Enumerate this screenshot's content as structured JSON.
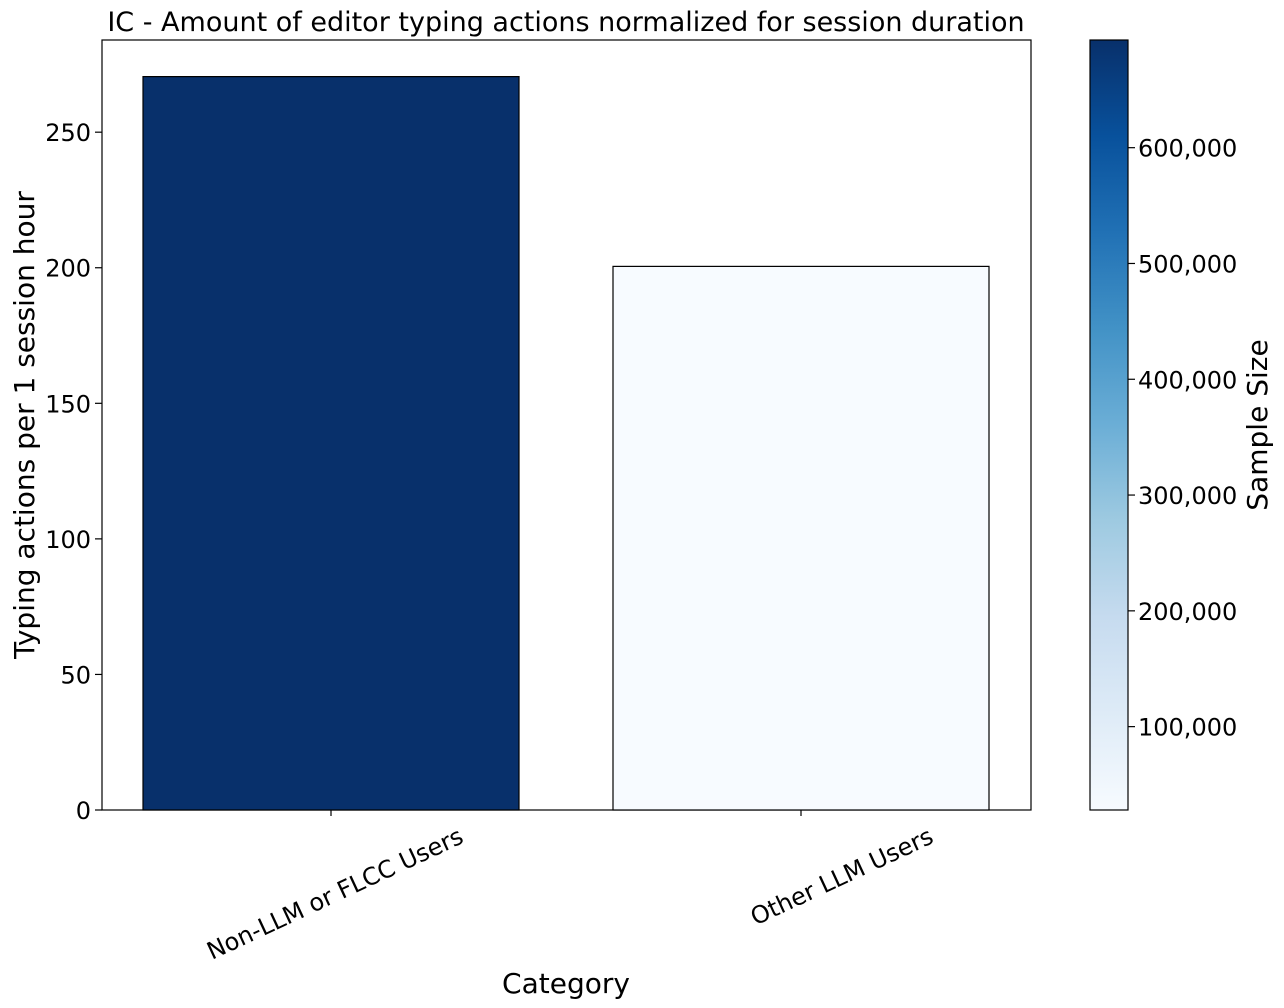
{
  "chart_data": {
    "type": "bar",
    "title": "IC - Amount of editor typing actions normalized for session duration",
    "xlabel": "Category",
    "ylabel": "Typing actions per 1 session hour",
    "categories": [
      "Non-LLM or FLCC Users",
      "Other LLM Users"
    ],
    "values": [
      270.5,
      200.5
    ],
    "sample_sizes": [
      693000,
      28000
    ],
    "ylim": [
      0,
      284
    ],
    "yticks": [
      0,
      50,
      100,
      150,
      200,
      250
    ],
    "grid": false,
    "legend": "none",
    "colorbar": {
      "label": "Sample Size",
      "colormap": "Blues",
      "range": [
        28000,
        693000
      ],
      "ticks": [
        100000,
        200000,
        300000,
        400000,
        500000,
        600000
      ],
      "tick_labels": [
        "100,000",
        "200,000",
        "300,000",
        "400,000",
        "500,000",
        "600,000"
      ]
    },
    "colors": {
      "blues_ramp": [
        "#f7fbff",
        "#deebf7",
        "#c6dbef",
        "#9ecae1",
        "#6baed6",
        "#4292c6",
        "#2171b5",
        "#08519c",
        "#08306b"
      ],
      "edge": "#000000"
    }
  }
}
